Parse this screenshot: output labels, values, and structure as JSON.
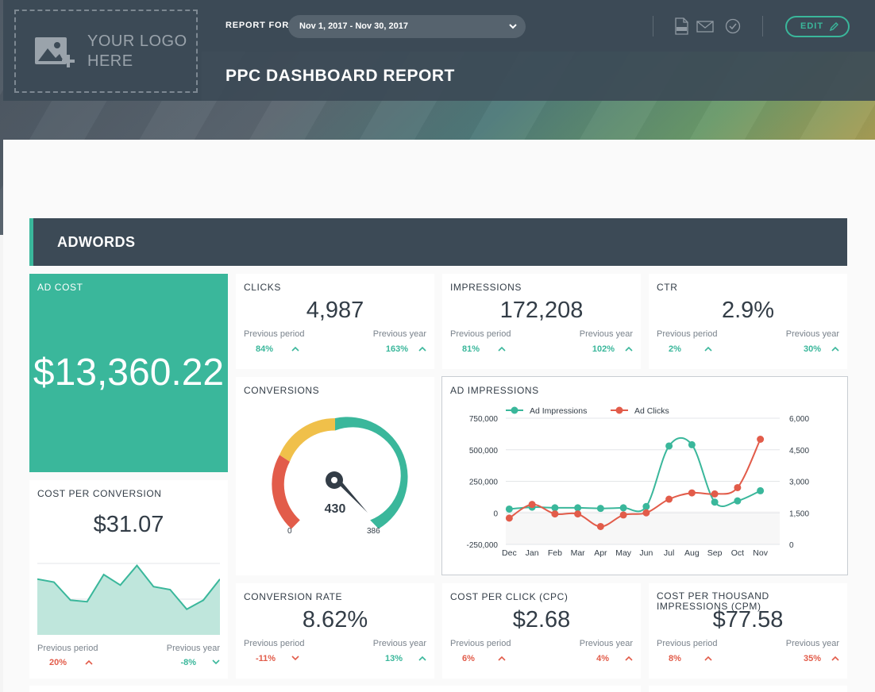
{
  "header": {
    "logo_line1": "YOUR LOGO",
    "logo_line2": "HERE",
    "report_for_label": "REPORT FOR",
    "date_range": "Nov 1, 2017 - Nov 30, 2017",
    "edit_label": "EDIT",
    "title": "PPC DASHBOARD REPORT",
    "icons": [
      "pdf-icon",
      "mail-icon",
      "check-circle-icon",
      "pencil-icon",
      "chevron-down-icon"
    ]
  },
  "section": {
    "title": "ADWORDS",
    "accent": "#3ab79b"
  },
  "colors": {
    "teal": "#3ab79b",
    "red": "#e25c4a",
    "dark": "#3c4a56",
    "yellow": "#f0c04a"
  },
  "cards": {
    "ad_cost": {
      "label": "AD COST",
      "value": "$13,360.22"
    },
    "clicks": {
      "label": "CLICKS",
      "value": "4,987",
      "prev_period_label": "Previous period",
      "prev_period": "84%",
      "prev_period_dir": "up-good",
      "prev_year_label": "Previous year",
      "prev_year": "163%",
      "prev_year_dir": "up-good"
    },
    "impressions": {
      "label": "IMPRESSIONS",
      "value": "172,208",
      "prev_period_label": "Previous period",
      "prev_period": "81%",
      "prev_period_dir": "up-good",
      "prev_year_label": "Previous year",
      "prev_year": "102%",
      "prev_year_dir": "up-good"
    },
    "ctr": {
      "label": "CTR",
      "value": "2.9%",
      "prev_period_label": "Previous period",
      "prev_period": "2%",
      "prev_period_dir": "up-good",
      "prev_year_label": "Previous year",
      "prev_year": "30%",
      "prev_year_dir": "up-good"
    },
    "cost_per_conversion": {
      "label": "COST PER CONVERSION",
      "value": "$31.07",
      "prev_period_label": "Previous period",
      "prev_period": "20%",
      "prev_period_dir": "up-bad",
      "prev_year_label": "Previous year",
      "prev_year": "-8%",
      "prev_year_dir": "down-good",
      "sparkline": [
        37,
        35,
        23,
        22,
        40,
        33,
        46,
        32,
        30,
        17,
        23,
        37
      ]
    },
    "conversions": {
      "label": "CONVERSIONS",
      "value": "430",
      "min": "0",
      "max": "386",
      "level": 1.0
    },
    "conversion_rate": {
      "label": "CONVERSION RATE",
      "value": "8.62%",
      "prev_period_label": "Previous period",
      "prev_period": "-11%",
      "prev_period_dir": "down-bad",
      "prev_year_label": "Previous year",
      "prev_year": "13%",
      "prev_year_dir": "up-good"
    },
    "cpc": {
      "label": "COST PER CLICK (CPC)",
      "value": "$2.68",
      "prev_period_label": "Previous period",
      "prev_period": "6%",
      "prev_period_dir": "up-bad",
      "prev_year_label": "Previous year",
      "prev_year": "4%",
      "prev_year_dir": "up-bad"
    },
    "cpm": {
      "label": "COST PER THOUSAND IMPRESSIONS (CPM)",
      "value": "$77.58",
      "prev_period_label": "Previous period",
      "prev_period": "8%",
      "prev_period_dir": "up-bad",
      "prev_year_label": "Previous year",
      "prev_year": "35%",
      "prev_year_dir": "up-bad"
    }
  },
  "chart_data": {
    "type": "line",
    "title": "AD IMPRESSIONS",
    "categories": [
      "Dec",
      "Jan",
      "Feb",
      "Mar",
      "Apr",
      "May",
      "Jun",
      "Jul",
      "Aug",
      "Sep",
      "Oct",
      "Nov"
    ],
    "y_ticks_left": [
      "750,000",
      "500,000",
      "250,000",
      "0",
      "-250,000"
    ],
    "y_ticks_right": [
      "6,000",
      "4,500",
      "3,000",
      "1,500",
      "0"
    ],
    "ylim_left": [
      -250000,
      750000
    ],
    "ylim_right": [
      0,
      6000
    ],
    "legend_position": "top-left",
    "series": [
      {
        "name": "Ad Impressions",
        "axis": "left",
        "color": "#3ab79b",
        "values": [
          30000,
          45000,
          40000,
          40000,
          35000,
          40000,
          50000,
          530000,
          540000,
          85000,
          95000,
          175000
        ]
      },
      {
        "name": "Ad Clicks",
        "axis": "right",
        "color": "#e25c4a",
        "values": [
          1250,
          1900,
          1450,
          1450,
          850,
          1400,
          1500,
          2150,
          2450,
          2400,
          2700,
          5000
        ]
      }
    ]
  }
}
